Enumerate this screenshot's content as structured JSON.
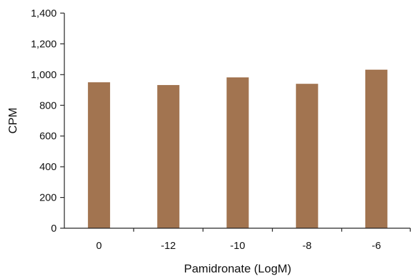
{
  "chart_data": {
    "type": "bar",
    "categories": [
      "0",
      "-12",
      "-10",
      "-8",
      "-6"
    ],
    "values": [
      950,
      932,
      982,
      940,
      1032
    ],
    "xlabel": "Pamidronate (LogM)",
    "ylabel": "CPM",
    "ylim": [
      0,
      1400
    ],
    "yticks": [
      "0",
      "200",
      "400",
      "600",
      "800",
      "1,000",
      "1,200",
      "1,400"
    ],
    "grid": false,
    "bar_color": "#a27450"
  }
}
